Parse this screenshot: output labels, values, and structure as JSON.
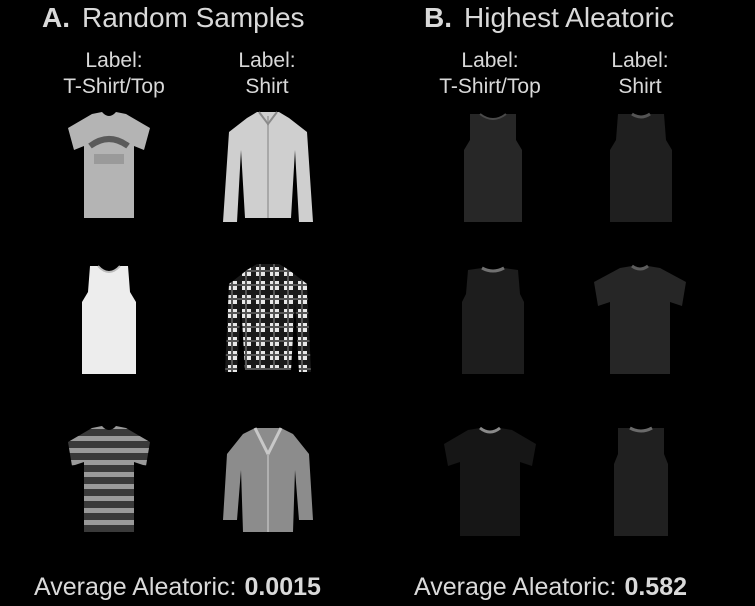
{
  "panel_a": {
    "letter": "A.",
    "title": "Random Samples",
    "labels": [
      {
        "prefix": "Label:",
        "value": "T-Shirt/Top"
      },
      {
        "prefix": "Label:",
        "value": "Shirt"
      }
    ],
    "average_label": "Average Aleatoric:",
    "average_value": "0.0015"
  },
  "panel_b": {
    "letter": "B.",
    "title": "Highest Aleatoric",
    "labels": [
      {
        "prefix": "Label:",
        "value": "T-Shirt/Top"
      },
      {
        "prefix": "Label:",
        "value": "Shirt"
      }
    ],
    "average_label": "Average Aleatoric:",
    "average_value": "0.582"
  },
  "icons": {
    "a": [
      "tshirt-icon",
      "long-sleeve-shirt-icon",
      "tank-top-icon",
      "plaid-shirt-icon",
      "striped-tshirt-icon",
      "blouse-icon"
    ],
    "b": [
      "dark-tank-top-icon",
      "dark-sleeveless-top-icon",
      "dark-sleeveless-top-icon",
      "dark-tshirt-icon",
      "dark-tshirt-icon",
      "dark-tank-top-icon"
    ]
  }
}
